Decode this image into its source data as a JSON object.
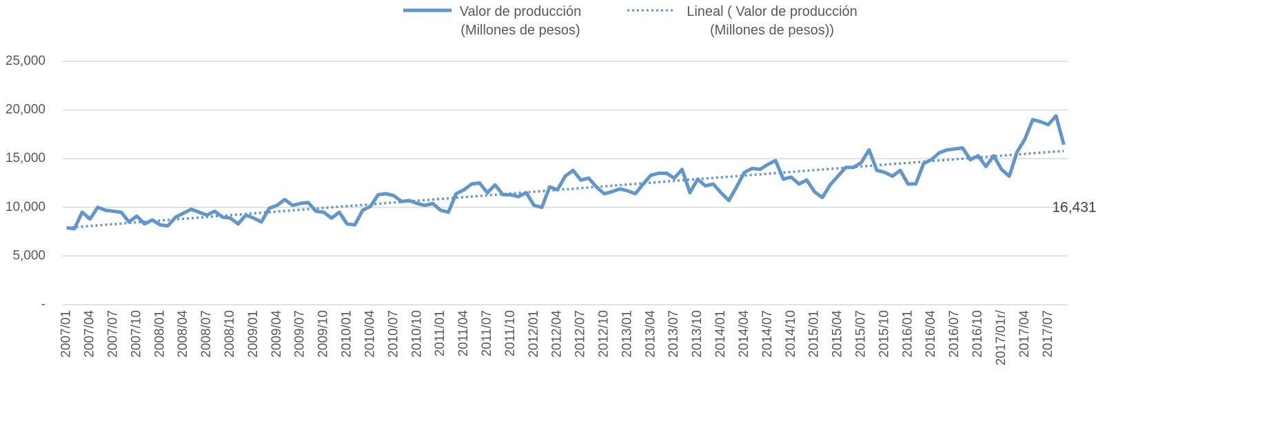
{
  "chart_data": {
    "type": "line",
    "categories": [
      "2007/01",
      null,
      null,
      "2007/04",
      null,
      null,
      "2007/07",
      null,
      null,
      "2007/10",
      null,
      null,
      "2008/01",
      null,
      null,
      "2008/04",
      null,
      null,
      "2008/07",
      null,
      null,
      "2008/10",
      null,
      null,
      "2009/01",
      null,
      null,
      "2009/04",
      null,
      null,
      "2009/07",
      null,
      null,
      "2009/10",
      null,
      null,
      "2010/01",
      null,
      null,
      "2010/04",
      null,
      null,
      "2010/07",
      null,
      null,
      "2010/10",
      null,
      null,
      "2011/01",
      null,
      null,
      "2011/04",
      null,
      null,
      "2011/07",
      null,
      null,
      "2011/10",
      null,
      null,
      "2012/01",
      null,
      null,
      "2012/04",
      null,
      null,
      "2012/07",
      null,
      null,
      "2012/10",
      null,
      null,
      "2013/01",
      null,
      null,
      "2013/04",
      null,
      null,
      "2013/07",
      null,
      null,
      "2013/10",
      null,
      null,
      "2014/01",
      null,
      null,
      "2014/04",
      null,
      null,
      "2014/07",
      null,
      null,
      "2014/10",
      null,
      null,
      "2015/01",
      null,
      null,
      "2015/04",
      null,
      null,
      "2015/07",
      null,
      null,
      "2015/10",
      null,
      null,
      "2016/01",
      null,
      null,
      "2016/04",
      null,
      null,
      "2016/07",
      null,
      null,
      "2016/10",
      null,
      null,
      "2017/01r/",
      null,
      null,
      "2017/04",
      null,
      null,
      "2017/07",
      null,
      null
    ],
    "series": [
      {
        "name": "Valor de producción (Millones de pesos)",
        "color": "#6196cc",
        "values": [
          7900,
          7800,
          9500,
          8800,
          10000,
          9700,
          9600,
          9500,
          8500,
          9100,
          8300,
          8700,
          8200,
          8100,
          9000,
          9400,
          9800,
          9500,
          9200,
          9600,
          9000,
          8900,
          8300,
          9200,
          8900,
          8500,
          9900,
          10200,
          10800,
          10200,
          10400,
          10500,
          9600,
          9500,
          8900,
          9500,
          8300,
          8200,
          9700,
          10100,
          11300,
          11400,
          11200,
          10600,
          10700,
          10400,
          10200,
          10400,
          9700,
          9500,
          11400,
          11800,
          12400,
          12500,
          11500,
          12300,
          11300,
          11300,
          11100,
          11500,
          10200,
          10000,
          12100,
          11800,
          13200,
          13800,
          12800,
          13000,
          12100,
          11400,
          11600,
          11900,
          11700,
          11400,
          12400,
          13300,
          13500,
          13500,
          13000,
          13900,
          11500,
          12900,
          12200,
          12400,
          11500,
          10700,
          12100,
          13600,
          14000,
          13900,
          14400,
          14800,
          12900,
          13100,
          12400,
          12800,
          11600,
          11000,
          12300,
          13200,
          14100,
          14100,
          14600,
          15900,
          13800,
          13600,
          13200,
          13800,
          12400,
          12400,
          14500,
          14900,
          15600,
          15900,
          16000,
          16100,
          14900,
          15300,
          14200,
          15300,
          13900,
          13200,
          15700,
          17000,
          19000,
          18800,
          18500,
          19400,
          16431
        ],
        "value_labels": [
          null,
          null,
          null,
          null,
          null,
          null,
          null,
          null,
          null,
          null,
          null,
          null,
          null,
          null,
          null,
          null,
          null,
          null,
          null,
          null,
          null,
          null,
          null,
          null,
          null,
          null,
          null,
          null,
          null,
          null,
          null,
          null,
          null,
          null,
          null,
          null,
          null,
          null,
          null,
          null,
          null,
          null,
          null,
          null,
          null,
          null,
          null,
          null,
          null,
          null,
          null,
          null,
          null,
          null,
          null,
          null,
          null,
          null,
          null,
          null,
          null,
          null,
          null,
          null,
          null,
          null,
          null,
          null,
          null,
          null,
          null,
          null,
          null,
          null,
          null,
          null,
          null,
          null,
          null,
          null,
          null,
          null,
          null,
          null,
          null,
          null,
          null,
          null,
          null,
          null,
          null,
          null,
          null,
          null,
          null,
          null,
          null,
          null,
          null,
          null,
          null,
          null,
          null,
          null,
          null,
          null,
          null,
          null,
          null,
          null,
          null,
          null,
          null,
          null,
          null,
          null,
          null,
          null,
          null,
          null,
          null,
          null,
          null,
          null,
          null,
          null,
          null,
          null,
          "16,431"
        ]
      }
    ],
    "trendline": {
      "name": "Lineal ( Valor de producción (Millones de pesos))",
      "color": "#6196cc",
      "start": 7900,
      "end": 15800
    },
    "ylim": [
      0,
      25000
    ],
    "yticks": [
      {
        "value": 0,
        "label": "-"
      },
      {
        "value": 5000,
        "label": "5,000"
      },
      {
        "value": 10000,
        "label": "10,000"
      },
      {
        "value": 15000,
        "label": "15,000"
      },
      {
        "value": 20000,
        "label": "20,000"
      },
      {
        "value": 25000,
        "label": "25,000"
      }
    ],
    "grid": true,
    "legend": "top"
  }
}
